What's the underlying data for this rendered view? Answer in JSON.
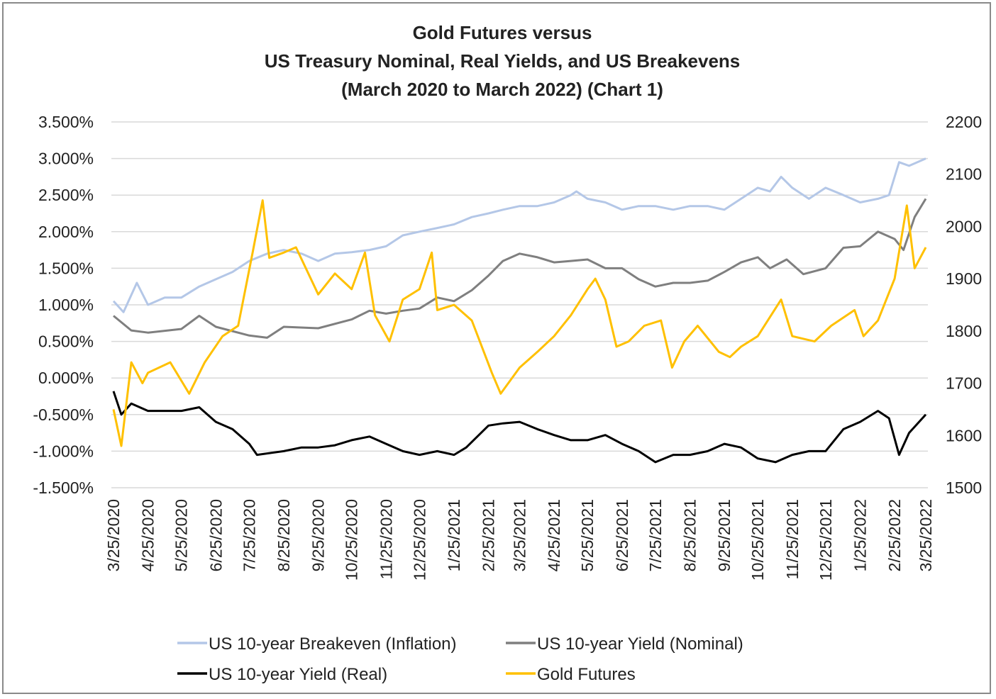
{
  "chart_data": {
    "type": "line",
    "title": [
      "Gold Futures versus",
      "US Treasury Nominal, Real Yields, and US Breakevens",
      "(March 2020 to March 2022) (Chart 1)"
    ],
    "xlabel": "",
    "ylabel_left": "",
    "ylabel_right": "",
    "x_ticks": [
      "3/25/2020",
      "4/25/2020",
      "5/25/2020",
      "6/25/2020",
      "7/25/2020",
      "8/25/2020",
      "9/25/2020",
      "10/25/2020",
      "11/25/2020",
      "12/25/2020",
      "1/25/2021",
      "2/25/2021",
      "3/25/2021",
      "4/25/2021",
      "5/25/2021",
      "6/25/2021",
      "7/25/2021",
      "8/25/2021",
      "9/25/2021",
      "10/25/2021",
      "11/25/2021",
      "12/25/2021",
      "1/25/2022",
      "2/25/2022",
      "3/25/2022"
    ],
    "y_left": {
      "ticks": [
        "3.500%",
        "3.000%",
        "2.500%",
        "2.000%",
        "1.500%",
        "1.000%",
        "0.500%",
        "0.000%",
        "-0.500%",
        "-1.000%",
        "-1.500%"
      ],
      "range": [
        -1.5,
        3.5
      ],
      "unit": "%"
    },
    "y_right": {
      "ticks": [
        "2200",
        "2100",
        "2000",
        "1900",
        "1800",
        "1700",
        "1600",
        "1500"
      ],
      "range": [
        1500,
        2200
      ]
    },
    "grid": true,
    "legend_position": "bottom",
    "series": [
      {
        "name": "US 10-year Breakeven (Inflation)",
        "axis": "left",
        "color": "#b4c7e7",
        "points": [
          [
            "3/25/2020",
            1.05
          ],
          [
            "4/3/2020",
            0.9
          ],
          [
            "4/15/2020",
            1.3
          ],
          [
            "4/25/2020",
            1.0
          ],
          [
            "5/10/2020",
            1.1
          ],
          [
            "5/25/2020",
            1.1
          ],
          [
            "6/10/2020",
            1.25
          ],
          [
            "6/25/2020",
            1.35
          ],
          [
            "7/10/2020",
            1.45
          ],
          [
            "7/25/2020",
            1.6
          ],
          [
            "8/10/2020",
            1.7
          ],
          [
            "8/25/2020",
            1.75
          ],
          [
            "9/10/2020",
            1.7
          ],
          [
            "9/25/2020",
            1.6
          ],
          [
            "10/10/2020",
            1.7
          ],
          [
            "10/25/2020",
            1.72
          ],
          [
            "11/10/2020",
            1.75
          ],
          [
            "11/25/2020",
            1.8
          ],
          [
            "12/10/2020",
            1.95
          ],
          [
            "12/25/2020",
            2.0
          ],
          [
            "1/10/2021",
            2.05
          ],
          [
            "1/25/2021",
            2.1
          ],
          [
            "2/10/2021",
            2.2
          ],
          [
            "2/25/2021",
            2.25
          ],
          [
            "3/10/2021",
            2.3
          ],
          [
            "3/25/2021",
            2.35
          ],
          [
            "4/10/2021",
            2.35
          ],
          [
            "4/25/2021",
            2.4
          ],
          [
            "5/10/2021",
            2.5
          ],
          [
            "5/15/2021",
            2.55
          ],
          [
            "5/25/2021",
            2.45
          ],
          [
            "6/10/2021",
            2.4
          ],
          [
            "6/25/2021",
            2.3
          ],
          [
            "7/10/2021",
            2.35
          ],
          [
            "7/25/2021",
            2.35
          ],
          [
            "8/10/2021",
            2.3
          ],
          [
            "8/25/2021",
            2.35
          ],
          [
            "9/10/2021",
            2.35
          ],
          [
            "9/25/2021",
            2.3
          ],
          [
            "10/10/2021",
            2.45
          ],
          [
            "10/25/2021",
            2.6
          ],
          [
            "11/5/2021",
            2.55
          ],
          [
            "11/15/2021",
            2.75
          ],
          [
            "11/25/2021",
            2.6
          ],
          [
            "12/10/2021",
            2.45
          ],
          [
            "12/25/2021",
            2.6
          ],
          [
            "1/10/2022",
            2.5
          ],
          [
            "1/25/2022",
            2.4
          ],
          [
            "2/10/2022",
            2.45
          ],
          [
            "2/20/2022",
            2.5
          ],
          [
            "3/1/2022",
            2.95
          ],
          [
            "3/10/2022",
            2.9
          ],
          [
            "3/25/2022",
            3.0
          ]
        ]
      },
      {
        "name": "US 10-year Yield (Nominal)",
        "axis": "left",
        "color": "#7f7f7f",
        "points": [
          [
            "3/25/2020",
            0.85
          ],
          [
            "4/10/2020",
            0.65
          ],
          [
            "4/25/2020",
            0.62
          ],
          [
            "5/25/2020",
            0.67
          ],
          [
            "6/10/2020",
            0.85
          ],
          [
            "6/25/2020",
            0.7
          ],
          [
            "7/25/2020",
            0.58
          ],
          [
            "8/10/2020",
            0.55
          ],
          [
            "8/25/2020",
            0.7
          ],
          [
            "9/25/2020",
            0.68
          ],
          [
            "10/25/2020",
            0.8
          ],
          [
            "11/10/2020",
            0.92
          ],
          [
            "11/25/2020",
            0.88
          ],
          [
            "12/10/2020",
            0.92
          ],
          [
            "12/25/2020",
            0.95
          ],
          [
            "1/10/2021",
            1.1
          ],
          [
            "1/25/2021",
            1.05
          ],
          [
            "2/10/2021",
            1.2
          ],
          [
            "2/25/2021",
            1.4
          ],
          [
            "3/10/2021",
            1.6
          ],
          [
            "3/25/2021",
            1.7
          ],
          [
            "4/10/2021",
            1.65
          ],
          [
            "4/25/2021",
            1.58
          ],
          [
            "5/10/2021",
            1.6
          ],
          [
            "5/25/2021",
            1.62
          ],
          [
            "6/10/2021",
            1.5
          ],
          [
            "6/25/2021",
            1.5
          ],
          [
            "7/10/2021",
            1.35
          ],
          [
            "7/25/2021",
            1.25
          ],
          [
            "8/10/2021",
            1.3
          ],
          [
            "8/25/2021",
            1.3
          ],
          [
            "9/10/2021",
            1.33
          ],
          [
            "9/25/2021",
            1.45
          ],
          [
            "10/10/2021",
            1.58
          ],
          [
            "10/25/2021",
            1.65
          ],
          [
            "11/5/2021",
            1.5
          ],
          [
            "11/20/2021",
            1.62
          ],
          [
            "12/5/2021",
            1.42
          ],
          [
            "12/25/2021",
            1.5
          ],
          [
            "1/10/2022",
            1.78
          ],
          [
            "1/25/2022",
            1.8
          ],
          [
            "2/10/2022",
            2.0
          ],
          [
            "2/25/2022",
            1.9
          ],
          [
            "3/5/2022",
            1.75
          ],
          [
            "3/15/2022",
            2.2
          ],
          [
            "3/25/2022",
            2.45
          ]
        ]
      },
      {
        "name": "US 10-year Yield (Real)",
        "axis": "left",
        "color": "#000000",
        "points": [
          [
            "3/25/2020",
            -0.18
          ],
          [
            "4/1/2020",
            -0.5
          ],
          [
            "4/10/2020",
            -0.35
          ],
          [
            "4/25/2020",
            -0.45
          ],
          [
            "5/25/2020",
            -0.45
          ],
          [
            "6/10/2020",
            -0.4
          ],
          [
            "6/25/2020",
            -0.6
          ],
          [
            "7/10/2020",
            -0.7
          ],
          [
            "7/25/2020",
            -0.9
          ],
          [
            "8/1/2020",
            -1.05
          ],
          [
            "8/25/2020",
            -1.0
          ],
          [
            "9/10/2020",
            -0.95
          ],
          [
            "9/25/2020",
            -0.95
          ],
          [
            "10/10/2020",
            -0.92
          ],
          [
            "10/25/2020",
            -0.85
          ],
          [
            "11/10/2020",
            -0.8
          ],
          [
            "11/25/2020",
            -0.9
          ],
          [
            "12/10/2020",
            -1.0
          ],
          [
            "12/25/2020",
            -1.05
          ],
          [
            "1/10/2021",
            -1.0
          ],
          [
            "1/25/2021",
            -1.05
          ],
          [
            "2/5/2021",
            -0.95
          ],
          [
            "2/25/2021",
            -0.65
          ],
          [
            "3/10/2021",
            -0.62
          ],
          [
            "3/25/2021",
            -0.6
          ],
          [
            "4/10/2021",
            -0.7
          ],
          [
            "4/25/2021",
            -0.78
          ],
          [
            "5/10/2021",
            -0.85
          ],
          [
            "5/25/2021",
            -0.85
          ],
          [
            "6/10/2021",
            -0.78
          ],
          [
            "6/25/2021",
            -0.9
          ],
          [
            "7/10/2021",
            -1.0
          ],
          [
            "7/25/2021",
            -1.15
          ],
          [
            "8/10/2021",
            -1.05
          ],
          [
            "8/25/2021",
            -1.05
          ],
          [
            "9/10/2021",
            -1.0
          ],
          [
            "9/25/2021",
            -0.9
          ],
          [
            "10/10/2021",
            -0.95
          ],
          [
            "10/25/2021",
            -1.1
          ],
          [
            "11/10/2021",
            -1.15
          ],
          [
            "11/25/2021",
            -1.05
          ],
          [
            "12/10/2021",
            -1.0
          ],
          [
            "12/25/2021",
            -1.0
          ],
          [
            "1/10/2022",
            -0.7
          ],
          [
            "1/25/2022",
            -0.6
          ],
          [
            "2/10/2022",
            -0.45
          ],
          [
            "2/20/2022",
            -0.55
          ],
          [
            "3/1/2022",
            -1.05
          ],
          [
            "3/10/2022",
            -0.75
          ],
          [
            "3/25/2022",
            -0.5
          ]
        ]
      },
      {
        "name": "Gold Futures",
        "axis": "right",
        "color": "#ffc000",
        "points": [
          [
            "3/25/2020",
            1650
          ],
          [
            "4/1/2020",
            1580
          ],
          [
            "4/10/2020",
            1740
          ],
          [
            "4/20/2020",
            1700
          ],
          [
            "4/25/2020",
            1720
          ],
          [
            "5/15/2020",
            1740
          ],
          [
            "6/1/2020",
            1680
          ],
          [
            "6/15/2020",
            1740
          ],
          [
            "7/1/2020",
            1790
          ],
          [
            "7/15/2020",
            1810
          ],
          [
            "7/28/2020",
            1950
          ],
          [
            "8/6/2020",
            2050
          ],
          [
            "8/12/2020",
            1940
          ],
          [
            "8/25/2020",
            1950
          ],
          [
            "9/5/2020",
            1960
          ],
          [
            "9/25/2020",
            1870
          ],
          [
            "10/10/2020",
            1910
          ],
          [
            "10/25/2020",
            1880
          ],
          [
            "11/6/2020",
            1950
          ],
          [
            "11/15/2020",
            1830
          ],
          [
            "11/28/2020",
            1780
          ],
          [
            "12/10/2020",
            1860
          ],
          [
            "12/25/2020",
            1880
          ],
          [
            "1/5/2021",
            1950
          ],
          [
            "1/10/2021",
            1840
          ],
          [
            "1/25/2021",
            1850
          ],
          [
            "2/10/2021",
            1820
          ],
          [
            "2/28/2021",
            1720
          ],
          [
            "3/8/2021",
            1680
          ],
          [
            "3/25/2021",
            1730
          ],
          [
            "4/10/2021",
            1760
          ],
          [
            "4/25/2021",
            1790
          ],
          [
            "5/10/2021",
            1830
          ],
          [
            "5/25/2021",
            1880
          ],
          [
            "6/1/2021",
            1900
          ],
          [
            "6/10/2021",
            1860
          ],
          [
            "6/20/2021",
            1770
          ],
          [
            "7/1/2021",
            1780
          ],
          [
            "7/15/2021",
            1810
          ],
          [
            "7/30/2021",
            1820
          ],
          [
            "8/9/2021",
            1730
          ],
          [
            "8/20/2021",
            1780
          ],
          [
            "9/1/2021",
            1810
          ],
          [
            "9/20/2021",
            1760
          ],
          [
            "9/30/2021",
            1750
          ],
          [
            "10/10/2021",
            1770
          ],
          [
            "10/25/2021",
            1790
          ],
          [
            "11/15/2021",
            1860
          ],
          [
            "11/25/2021",
            1790
          ],
          [
            "12/15/2021",
            1780
          ],
          [
            "12/30/2021",
            1810
          ],
          [
            "1/20/2022",
            1840
          ],
          [
            "1/28/2022",
            1790
          ],
          [
            "2/10/2022",
            1820
          ],
          [
            "2/25/2022",
            1900
          ],
          [
            "3/8/2022",
            2040
          ],
          [
            "3/15/2022",
            1920
          ],
          [
            "3/25/2022",
            1960
          ]
        ]
      }
    ]
  }
}
